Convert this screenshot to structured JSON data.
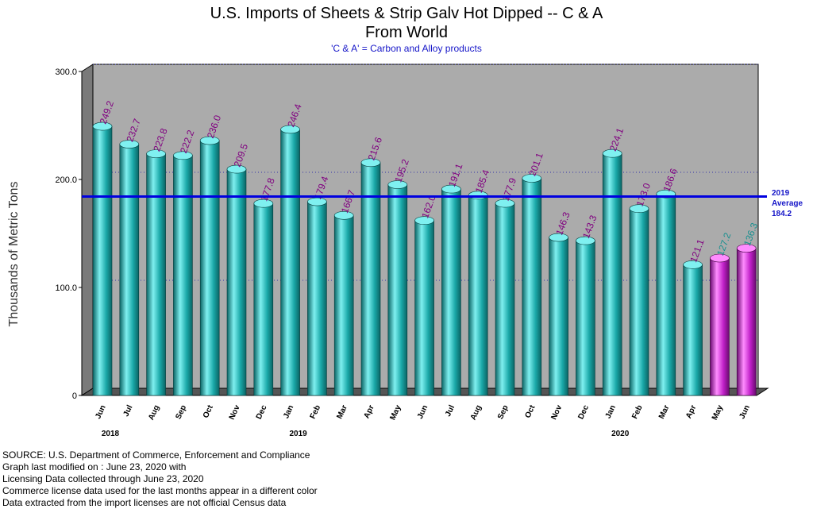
{
  "chart_data": {
    "type": "bar",
    "title": "U.S. Imports of Sheets & Strip Galv Hot Dipped -- C & A",
    "title_line2": "From World",
    "subtitle": "'C & A' = Carbon and Alloy products",
    "ylabel": "Thousands of Metric Tons",
    "ylim": [
      0,
      300
    ],
    "yticks": [
      "0",
      "100.0",
      "200.0",
      "300.0"
    ],
    "grid": true,
    "categories": [
      "Jun",
      "Jul",
      "Aug",
      "Sep",
      "Oct",
      "Nov",
      "Dec",
      "Jan",
      "Feb",
      "Mar",
      "Apr",
      "May",
      "Jun",
      "Jul",
      "Aug",
      "Sep",
      "Oct",
      "Nov",
      "Dec",
      "Jan",
      "Feb",
      "Mar",
      "Apr",
      "May",
      "Jun"
    ],
    "year_labels": [
      {
        "label": "2018",
        "index": 0
      },
      {
        "label": "2019",
        "index": 7
      },
      {
        "label": "2020",
        "index": 19
      }
    ],
    "values": [
      249.2,
      232.7,
      223.8,
      222.2,
      236.0,
      209.5,
      177.8,
      246.4,
      179.4,
      166.7,
      215.6,
      195.2,
      162.0,
      191.1,
      185.4,
      177.9,
      201.1,
      146.3,
      143.3,
      224.1,
      173.0,
      186.6,
      121.1,
      127.2,
      136.3
    ],
    "labels": [
      "249.2",
      "232.7",
      "223.8",
      "222.2",
      "236.0",
      "209.5",
      "177.8",
      "246.4",
      "179.4",
      "166.7",
      "215.6",
      "195.2",
      "162.0",
      "191.1",
      "185.4",
      "177.9",
      "201.1",
      "146.3",
      "143.3",
      "224.1",
      "173.0",
      "186.6",
      "121.1",
      "127.2",
      "136.3"
    ],
    "license_data_from_index": 23,
    "average": {
      "value": 184.2,
      "label_lines": [
        "2019",
        "Average",
        "184.2"
      ]
    },
    "colors": {
      "bar": "#1aa8a8",
      "bar_light": "#7ff0f0",
      "bar_dark": "#0a6464",
      "license_bar": "#c020c8",
      "license_light": "#ff8cff",
      "license_dark": "#6a0a70",
      "plot_bg": "#ababab",
      "average_line": "#0000e0",
      "value_label": "#800080",
      "license_label": "#1a9090",
      "grid": "#3333aa"
    }
  },
  "footer": {
    "lines": [
      "SOURCE: U.S. Department of Commerce, Enforcement and Compliance",
      "Graph last modified on : June 23, 2020      with",
      "Licensing Data collected through June 23, 2020",
      "Commerce license data used for the last months appear in a different color",
      "Data extracted from the import licenses are not official Census data"
    ]
  }
}
